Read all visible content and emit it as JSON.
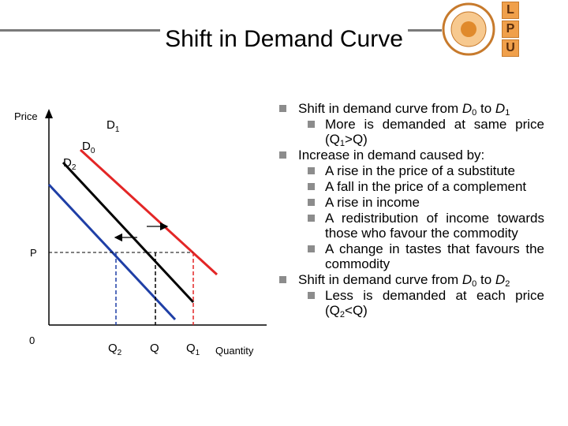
{
  "title": "Shift in Demand Curve",
  "logo": {
    "letters": [
      "L",
      "P",
      "U"
    ],
    "seal_text": "LOVELY PROFESSIONAL UNIVERSITY",
    "color": "#f0a04b"
  },
  "diagram": {
    "y_axis_label": "Price",
    "x_axis_label": "Quantity",
    "origin_label": "0",
    "price_label": "P",
    "curves": [
      {
        "name": "D",
        "sub": "1",
        "color": "#e32626"
      },
      {
        "name": "D",
        "sub": "0",
        "color": "#000000"
      },
      {
        "name": "D",
        "sub": "2",
        "color": "#1f3fa6"
      }
    ],
    "quantity_labels": [
      {
        "name": "Q",
        "sub": "2"
      },
      {
        "name": "Q",
        "sub": ""
      },
      {
        "name": "Q",
        "sub": "1"
      }
    ]
  },
  "bullets": [
    {
      "level": 1,
      "parts": [
        [
          "Shift in demand curve from ",
          ""
        ],
        [
          "D",
          "i"
        ],
        [
          "0",
          "sub"
        ],
        [
          " to ",
          ""
        ],
        [
          "D",
          "i"
        ],
        [
          "1",
          "sub"
        ]
      ]
    },
    {
      "level": 2,
      "parts": [
        [
          "More is demanded at same price (Q",
          ""
        ],
        [
          "1",
          "sub"
        ],
        [
          ">Q)",
          ""
        ]
      ]
    },
    {
      "level": 1,
      "parts": [
        [
          "Increase in demand caused by:",
          ""
        ]
      ]
    },
    {
      "level": 2,
      "parts": [
        [
          "A rise in the price of a substitute",
          ""
        ]
      ]
    },
    {
      "level": 2,
      "parts": [
        [
          "A fall in the price of a complement",
          ""
        ]
      ]
    },
    {
      "level": 2,
      "parts": [
        [
          "A rise in income",
          ""
        ]
      ]
    },
    {
      "level": 2,
      "parts": [
        [
          "A redistribution of income towards those who favour the commodity",
          ""
        ]
      ]
    },
    {
      "level": 2,
      "parts": [
        [
          "A change in tastes that favours the commodity",
          ""
        ]
      ]
    },
    {
      "level": 1,
      "parts": [
        [
          "Shift in demand curve from ",
          ""
        ],
        [
          "D",
          "i"
        ],
        [
          "0",
          "sub"
        ],
        [
          " to ",
          ""
        ],
        [
          "D",
          "i"
        ],
        [
          "2",
          "sub"
        ]
      ]
    },
    {
      "level": 2,
      "parts": [
        [
          "Less is demanded at each price (Q",
          ""
        ],
        [
          "2",
          "sub"
        ],
        [
          "<Q)",
          ""
        ]
      ]
    }
  ]
}
